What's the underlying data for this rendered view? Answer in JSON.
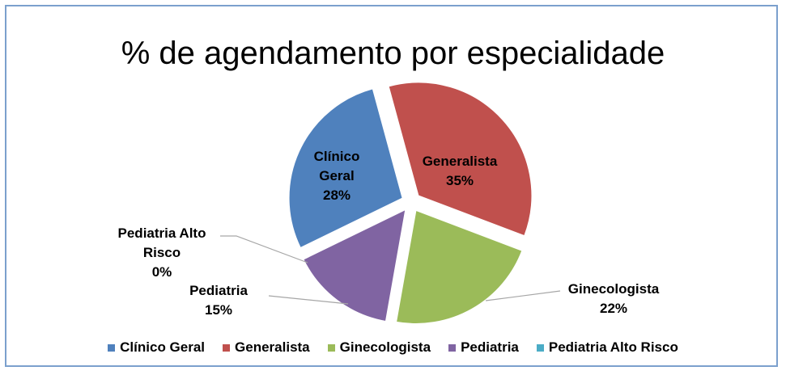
{
  "chart_data": {
    "type": "pie",
    "title": "% de agendamento por especialidade",
    "categories": [
      "Clínico Geral",
      "Generalista",
      "Ginecologista",
      "Pediatria",
      "Pediatria Alto Risco"
    ],
    "values": [
      28,
      35,
      22,
      15,
      0
    ],
    "value_labels": [
      "28%",
      "35%",
      "22%",
      "15%",
      "0%"
    ],
    "colors": [
      "#4f81bd",
      "#c0504d",
      "#9bbb59",
      "#8064a2",
      "#4bacc6"
    ],
    "legend": "bottom"
  }
}
